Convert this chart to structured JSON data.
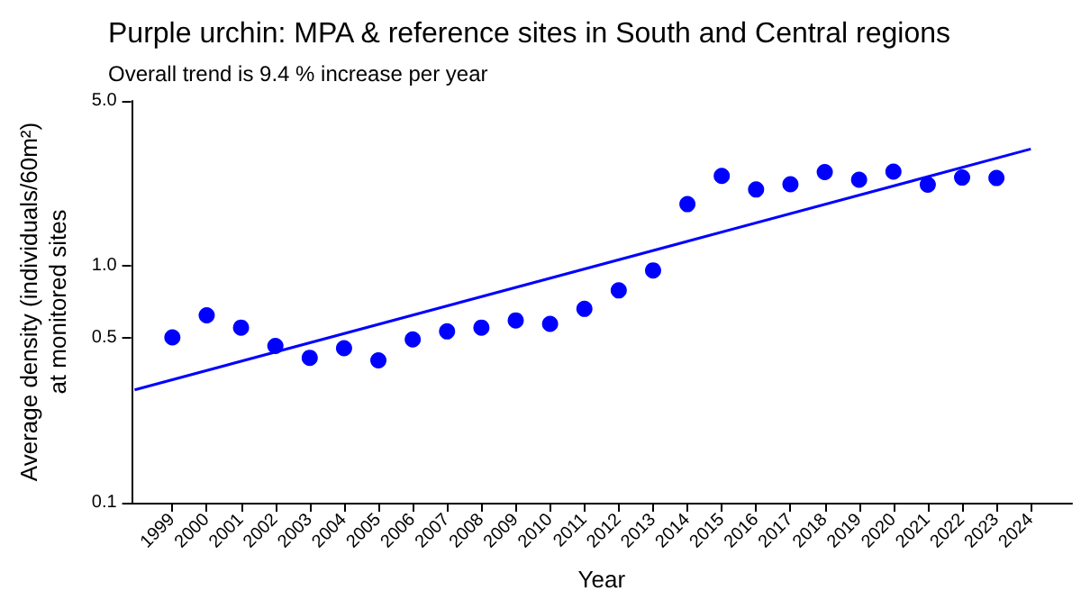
{
  "chart_data": {
    "type": "scatter",
    "title": "Purple urchin: MPA & reference sites in South and Central regions",
    "subtitle": "Overall trend is 9.4 % increase per year",
    "xlabel": "Year",
    "ylabel": "Average density (individuals/60m²)\nat monitored sites",
    "x": [
      1999,
      2000,
      2001,
      2002,
      2003,
      2004,
      2005,
      2006,
      2007,
      2008,
      2009,
      2010,
      2011,
      2012,
      2013,
      2014,
      2015,
      2016,
      2017,
      2018,
      2019,
      2020,
      2021,
      2022,
      2023
    ],
    "series": [
      {
        "color": "#0000ff",
        "marker": "circle",
        "values": [
          0.5,
          0.62,
          0.55,
          0.46,
          0.41,
          0.45,
          0.4,
          0.49,
          0.53,
          0.55,
          0.59,
          0.57,
          0.66,
          0.79,
          0.96,
          1.83,
          2.41,
          2.11,
          2.22,
          2.5,
          2.32,
          2.51,
          2.21,
          2.37,
          2.36
        ]
      },
      {
        "type": "line",
        "color": "#0000ff",
        "marker": "none",
        "x": [
          1997.9,
          2024
        ],
        "values": [
          0.3,
          3.13
        ]
      }
    ],
    "log": "y",
    "xlim": [
      1997.8,
      2025.2
    ],
    "xticks": [
      1999,
      2000,
      2001,
      2002,
      2003,
      2004,
      2005,
      2006,
      2007,
      2008,
      2009,
      2010,
      2011,
      2012,
      2013,
      2014,
      2015,
      2016,
      2017,
      2018,
      2019,
      2020,
      2021,
      2022,
      2023,
      2024
    ],
    "ylim": [
      0.1,
      5
    ],
    "yticks": [
      {
        "value": 0.1,
        "label": "0.1"
      },
      {
        "value": 0.5,
        "label": "0.5"
      },
      {
        "value": 1,
        "label": "1.0"
      },
      {
        "value": 5,
        "label": "5.0"
      }
    ],
    "grid": false
  }
}
